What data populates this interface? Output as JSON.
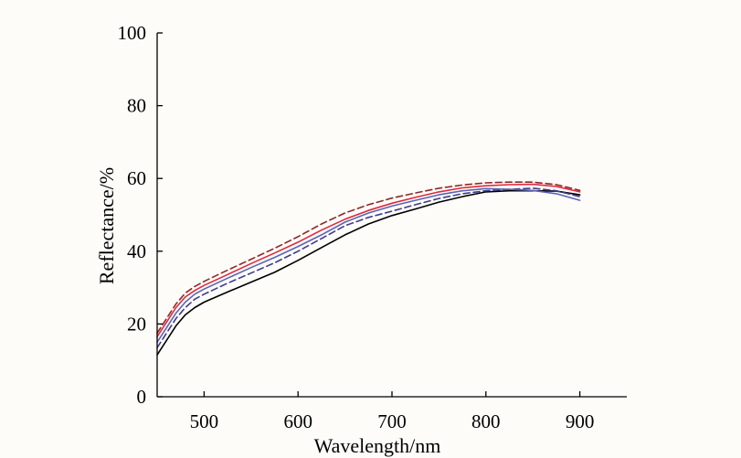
{
  "chart_data": {
    "type": "line",
    "title": "",
    "xlabel": "Wavelength/nm",
    "ylabel": "Reflectance/%",
    "xlim": [
      450,
      950
    ],
    "ylim": [
      0,
      100
    ],
    "x_ticks": [
      500,
      600,
      700,
      800,
      900
    ],
    "y_ticks": [
      0,
      20,
      40,
      60,
      80,
      100
    ],
    "grid": false,
    "legend": "none",
    "x": [
      450,
      460,
      470,
      480,
      490,
      500,
      525,
      550,
      575,
      600,
      625,
      650,
      675,
      700,
      725,
      750,
      775,
      800,
      825,
      850,
      875,
      900
    ],
    "series": [
      {
        "color": "#000000",
        "dash": "solid",
        "values": [
          11.5,
          15.5,
          19.5,
          22.5,
          24.5,
          26.0,
          28.8,
          31.5,
          34.2,
          37.5,
          41.0,
          44.5,
          47.5,
          49.8,
          51.6,
          53.5,
          55.0,
          56.3,
          56.6,
          56.6,
          56.5,
          55.5
        ]
      },
      {
        "color": "#3c3c8c",
        "dash": "dashed",
        "values": [
          13.5,
          17.5,
          21.5,
          24.5,
          26.8,
          28.2,
          31.2,
          34.0,
          36.8,
          40.0,
          43.5,
          47.0,
          49.3,
          51.0,
          52.8,
          54.5,
          55.8,
          56.6,
          57.0,
          57.3,
          56.6,
          55.0
        ]
      },
      {
        "color": "#5a64b4",
        "dash": "solid",
        "values": [
          15.0,
          19.0,
          23.0,
          26.0,
          28.2,
          29.6,
          32.6,
          35.5,
          38.3,
          41.3,
          44.5,
          48.0,
          50.5,
          52.4,
          54.0,
          55.5,
          56.6,
          57.2,
          57.0,
          56.7,
          55.8,
          54.0
        ]
      },
      {
        "color": "#e0283c",
        "dash": "solid",
        "values": [
          16.5,
          20.5,
          24.5,
          27.4,
          29.2,
          30.6,
          33.6,
          36.6,
          39.5,
          42.5,
          45.8,
          48.8,
          51.2,
          53.2,
          54.8,
          56.3,
          57.4,
          58.0,
          58.3,
          58.4,
          57.8,
          56.3
        ]
      },
      {
        "color": "#8c2828",
        "dash": "dashed",
        "values": [
          17.5,
          21.5,
          25.5,
          28.5,
          30.3,
          31.7,
          34.8,
          37.8,
          40.8,
          44.0,
          47.5,
          50.5,
          52.8,
          54.6,
          56.0,
          57.3,
          58.2,
          58.8,
          59.0,
          59.0,
          58.3,
          56.7
        ]
      }
    ]
  }
}
